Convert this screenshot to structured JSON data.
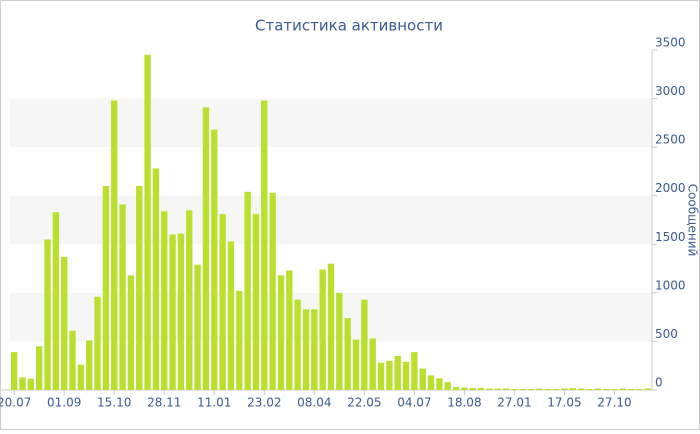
{
  "chart_data": {
    "type": "bar",
    "title": "Статистика активности",
    "y_axis_label": "Сообщений",
    "categories": [
      "20.07",
      null,
      null,
      null,
      null,
      null,
      "01.09",
      null,
      null,
      null,
      null,
      null,
      "15.10",
      null,
      null,
      null,
      null,
      null,
      "28.11",
      null,
      null,
      null,
      null,
      null,
      "11.01",
      null,
      null,
      null,
      null,
      null,
      "23.02",
      null,
      null,
      null,
      null,
      null,
      "08.04",
      null,
      null,
      null,
      null,
      null,
      "22.05",
      null,
      null,
      null,
      null,
      null,
      "04.07",
      null,
      null,
      null,
      null,
      null,
      "18.08",
      null,
      null,
      null,
      null,
      null,
      "27.01",
      null,
      null,
      null,
      null,
      null,
      "17.05",
      null,
      null,
      null,
      null,
      null,
      "27.10",
      null,
      null,
      null,
      null
    ],
    "values": [
      390,
      130,
      115,
      450,
      1550,
      1830,
      1370,
      610,
      260,
      510,
      960,
      2100,
      2980,
      1910,
      1180,
      2100,
      3450,
      2280,
      1840,
      1600,
      1610,
      1850,
      1290,
      2910,
      2680,
      1810,
      1530,
      1020,
      2040,
      1810,
      2980,
      2030,
      1180,
      1230,
      930,
      830,
      830,
      1240,
      1300,
      1000,
      740,
      520,
      930,
      530,
      280,
      300,
      350,
      290,
      390,
      220,
      150,
      120,
      80,
      30,
      25,
      20,
      20,
      15,
      15,
      15,
      10,
      10,
      10,
      15,
      10,
      10,
      15,
      20,
      15,
      10,
      15,
      10,
      10,
      15,
      10,
      10,
      15
    ],
    "color": "#b9e02c",
    "ylim": [
      0,
      3500
    ],
    "yticks": [
      0,
      500,
      1000,
      1500,
      2000,
      2500,
      3000,
      3500
    ],
    "grid": true
  }
}
